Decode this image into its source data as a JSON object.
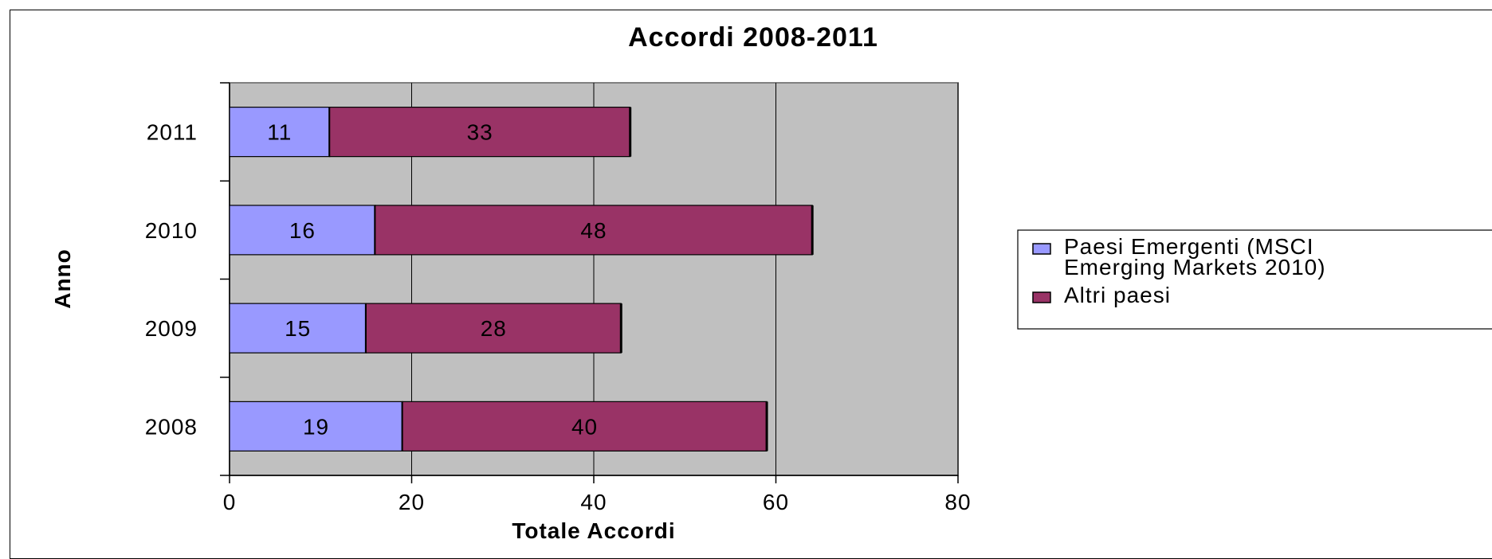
{
  "chart_data": {
    "type": "bar",
    "orientation": "horizontal",
    "stacked": true,
    "title": "Accordi  2008-2011",
    "xlabel": "Totale Accordi",
    "ylabel": "Anno",
    "categories": [
      "2011",
      "2010",
      "2009",
      "2008"
    ],
    "series": [
      {
        "name": "Paesi Emergenti (MSCI Emerging Markets 2010)",
        "values": [
          11,
          16,
          15,
          19
        ],
        "color": "#9999ff"
      },
      {
        "name": "Altri paesi",
        "values": [
          33,
          48,
          28,
          40
        ],
        "color": "#993366"
      }
    ],
    "xlim": [
      0,
      80
    ],
    "xticks": [
      0,
      20,
      40,
      60,
      80
    ],
    "grid": true,
    "plot_background": "#c0c0c0",
    "legend_position": "right",
    "legend_lines": [
      [
        "Paesi Emergenti (MSCI",
        "Emerging Markets 2010)"
      ],
      [
        "Altri paesi"
      ]
    ]
  }
}
